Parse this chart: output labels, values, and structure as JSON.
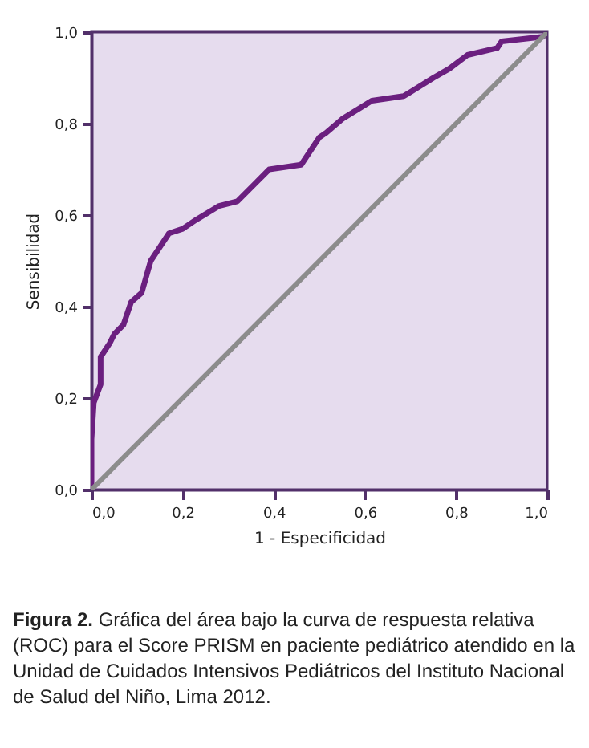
{
  "chart_data": {
    "type": "line",
    "xlabel": "1 - Especificidad",
    "ylabel": "Sensibilidad",
    "xlim": [
      0,
      1
    ],
    "ylim": [
      0,
      1
    ],
    "xticks": [
      {
        "value": 0,
        "label": "0,0"
      },
      {
        "value": 0.2,
        "label": "0,2"
      },
      {
        "value": 0.4,
        "label": "0,4"
      },
      {
        "value": 0.6,
        "label": "0,6"
      },
      {
        "value": 0.8,
        "label": "0,8"
      },
      {
        "value": 1,
        "label": "1,0"
      }
    ],
    "yticks": [
      {
        "value": 0,
        "label": "0,0"
      },
      {
        "value": 0.2,
        "label": "0,2"
      },
      {
        "value": 0.4,
        "label": "0,4"
      },
      {
        "value": 0.6,
        "label": "0,6"
      },
      {
        "value": 0.8,
        "label": "0,8"
      },
      {
        "value": 1,
        "label": "1,0"
      }
    ],
    "grid": false,
    "marker": "none",
    "line_style": "solid",
    "series": [
      {
        "color": "#6b1f7f",
        "x": [
          0,
          0,
          0.005,
          0.02,
          0.02,
          0.04,
          0.05,
          0.07,
          0.087,
          0.11,
          0.13,
          0.15,
          0.17,
          0.2,
          0.23,
          0.28,
          0.32,
          0.36,
          0.39,
          0.46,
          0.5,
          0.515,
          0.55,
          0.615,
          0.685,
          0.75,
          0.785,
          0.825,
          0.89,
          0.9,
          0.99,
          1
        ],
        "values": [
          0,
          0.11,
          0.19,
          0.23,
          0.29,
          0.32,
          0.34,
          0.36,
          0.41,
          0.43,
          0.5,
          0.53,
          0.56,
          0.57,
          0.59,
          0.62,
          0.63,
          0.67,
          0.7,
          0.71,
          0.77,
          0.78,
          0.81,
          0.85,
          0.86,
          0.9,
          0.92,
          0.95,
          0.965,
          0.98,
          0.99,
          1
        ]
      },
      {
        "color": "#8c8c8c",
        "x": [
          0,
          1
        ],
        "values": [
          0,
          1
        ]
      }
    ],
    "annotations": [
      "Figura 2. Gráfica del área bajo la curva de respuesta relativa (ROC) para el Score PRISM en paciente pediátrico atendido en la Unidad de Cuidados Intensivos Pediátricos del Instituto Nacional de Salud del Niño, Lima 2012."
    ]
  }
}
